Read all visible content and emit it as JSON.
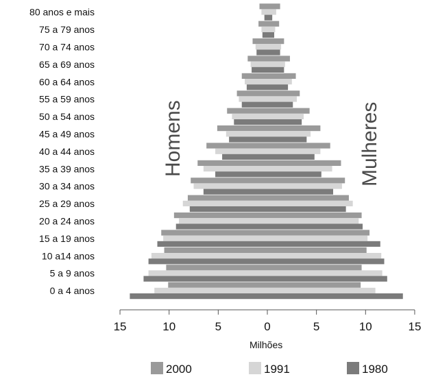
{
  "chart_data": {
    "type": "bar",
    "orientation": "horizontal",
    "categories": [
      "0 a 4 anos",
      "5 a 9 anos",
      "10 a14 anos",
      "15 a 19 anos",
      "20 a 24 anos",
      "25 a 29 anos",
      "30 a 34 anos",
      "35 a 39 anos",
      "40 a 44 anos",
      "45 a 49 anos",
      "50 a 54 anos",
      "55 a 59 anos",
      "60 a 64 anos",
      "65 a 69 anos",
      "70 a 74 anos",
      "75 a 79 anos",
      "80 anos e mais"
    ],
    "series": [
      {
        "name": "2000",
        "color": "#9a9a9a",
        "men": [
          10.1,
          10.3,
          10.5,
          10.8,
          9.5,
          8.1,
          7.8,
          7.1,
          6.2,
          5.1,
          4.1,
          3.1,
          2.6,
          2.0,
          1.5,
          0.9,
          0.8
        ],
        "women": [
          9.5,
          9.6,
          10.1,
          10.4,
          9.6,
          8.3,
          7.9,
          7.5,
          6.4,
          5.4,
          4.3,
          3.3,
          2.9,
          2.3,
          1.7,
          1.2,
          1.3
        ]
      },
      {
        "name": "1991",
        "color": "#d6d6d6",
        "men": [
          11.5,
          12.1,
          11.8,
          10.6,
          9.0,
          8.6,
          7.5,
          6.5,
          5.3,
          4.2,
          3.6,
          2.9,
          2.3,
          1.7,
          1.2,
          0.6,
          0.6
        ],
        "women": [
          11.0,
          11.7,
          11.6,
          10.2,
          9.3,
          8.7,
          7.6,
          6.6,
          5.4,
          4.4,
          3.7,
          3.0,
          2.5,
          1.8,
          1.4,
          0.8,
          0.9
        ]
      },
      {
        "name": "1980",
        "color": "#7b7b7b",
        "men": [
          14.0,
          12.6,
          12.1,
          11.2,
          9.3,
          7.9,
          6.5,
          5.3,
          4.6,
          3.9,
          3.4,
          2.6,
          2.1,
          1.6,
          1.1,
          0.5,
          0.3
        ],
        "women": [
          13.8,
          12.2,
          11.9,
          11.5,
          9.7,
          8.0,
          6.7,
          5.5,
          4.8,
          4.0,
          3.5,
          2.6,
          2.1,
          1.7,
          1.3,
          0.7,
          0.5
        ]
      }
    ],
    "x_ticks": [
      "15",
      "10",
      "5",
      "0",
      "5",
      "10",
      "15"
    ],
    "xlabel": "Milhões",
    "xlim": [
      -15,
      15
    ],
    "side_labels": {
      "left": "Homens",
      "right": "Mulheres"
    },
    "legend_position": "bottom",
    "grid": false
  }
}
